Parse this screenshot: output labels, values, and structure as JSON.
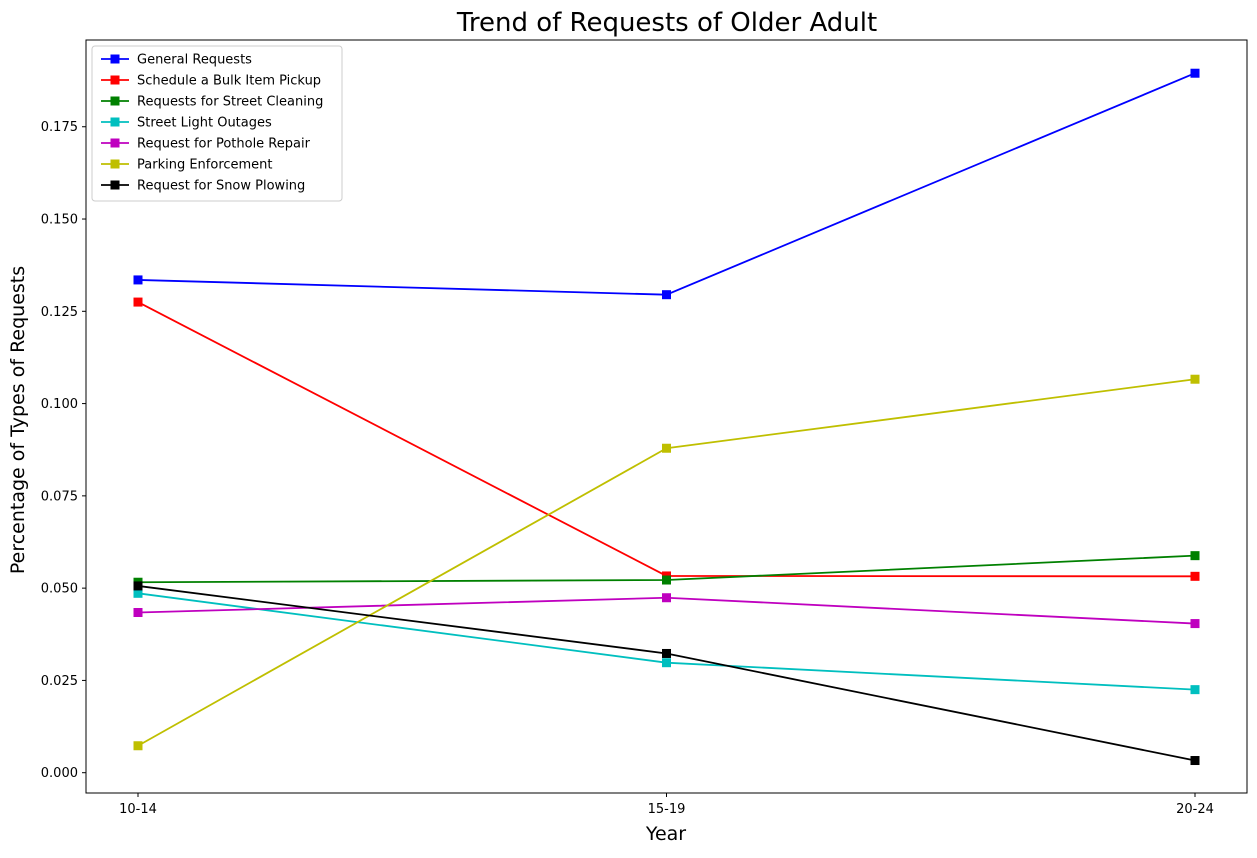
{
  "chart_data": {
    "type": "line",
    "title": "Trend of Requests of Older Adult",
    "xlabel": "Year",
    "ylabel": "Percentage of Types of Requests",
    "categories": [
      "10-14",
      "15-19",
      "20-24"
    ],
    "ylim": [
      -0.0055,
      0.1985
    ],
    "yticks": [
      0.0,
      0.025,
      0.05,
      0.075,
      0.1,
      0.125,
      0.15,
      0.175
    ],
    "ytick_labels": [
      "0.000",
      "0.025",
      "0.050",
      "0.075",
      "0.100",
      "0.125",
      "0.150",
      "0.175"
    ],
    "grid": false,
    "legend_position": "top-left",
    "marker": "square",
    "series": [
      {
        "name": "General Requests",
        "color": "#0000ff",
        "values": [
          0.1335,
          0.1295,
          0.1895
        ]
      },
      {
        "name": "Schedule a Bulk Item Pickup",
        "color": "#ff0000",
        "values": [
          0.1275,
          0.0533,
          0.0532
        ]
      },
      {
        "name": "Requests for Street Cleaning",
        "color": "#008000",
        "values": [
          0.0516,
          0.0522,
          0.0588
        ]
      },
      {
        "name": "Street Light Outages",
        "color": "#00bfbf",
        "values": [
          0.0486,
          0.0298,
          0.0225
        ]
      },
      {
        "name": "Request for Pothole Repair",
        "color": "#bf00bf",
        "values": [
          0.0434,
          0.0474,
          0.0404
        ]
      },
      {
        "name": "Parking Enforcement",
        "color": "#bfbf00",
        "values": [
          0.0073,
          0.0879,
          0.1066
        ]
      },
      {
        "name": "Request for Snow Plowing",
        "color": "#000000",
        "values": [
          0.0506,
          0.0323,
          0.0033
        ]
      }
    ]
  }
}
